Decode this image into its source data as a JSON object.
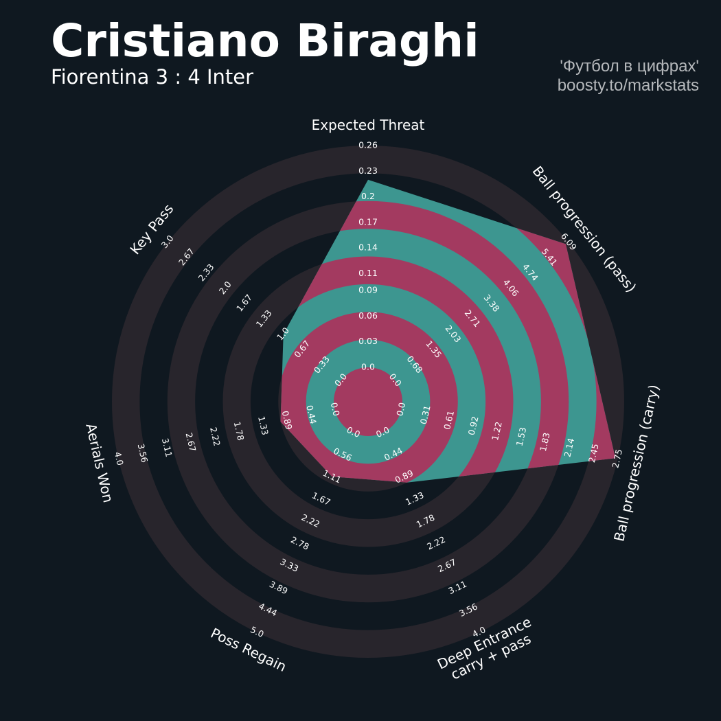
{
  "chart_data": {
    "type": "radar",
    "title": "Cristiano Biraghi",
    "subtitle": "Fiorentina 3 : 4 Inter",
    "credits": [
      "'Футбол в цифрах'",
      "boosty.to/markstats"
    ],
    "categories": [
      [
        "Expected Threat"
      ],
      [
        "Ball progression (pass)"
      ],
      [
        "Ball progression (carry)"
      ],
      [
        "Deep Entrance",
        "carry + pass"
      ],
      [
        "Poss Regain"
      ],
      [
        "Aerials Won"
      ],
      [
        "Key Pass"
      ]
    ],
    "values": [
      0.22,
      6.0,
      2.72,
      1.0,
      1.1,
      1.0,
      1.0
    ],
    "color": "#3d9690",
    "alt_color": "#a33a60",
    "ring_color": "#28252c",
    "axes": [
      {
        "range": [
          0,
          0.26
        ],
        "ticks": [
          {
            "value": 0,
            "label": "0.0"
          },
          {
            "value": 0.03,
            "label": "0.03"
          },
          {
            "value": 0.06,
            "label": "0.06"
          },
          {
            "value": 0.09,
            "label": "0.09"
          },
          {
            "value": 0.11,
            "label": "0.11"
          },
          {
            "value": 0.14,
            "label": "0.14"
          },
          {
            "value": 0.17,
            "label": "0.17"
          },
          {
            "value": 0.2,
            "label": "0.2"
          },
          {
            "value": 0.23,
            "label": "0.23"
          },
          {
            "value": 0.26,
            "label": "0.26"
          }
        ]
      },
      {
        "range": [
          0,
          6.09
        ],
        "ticks": [
          {
            "value": 0,
            "label": "0.0"
          },
          {
            "value": 0.68,
            "label": "0.68"
          },
          {
            "value": 1.35,
            "label": "1.35"
          },
          {
            "value": 2.03,
            "label": "2.03"
          },
          {
            "value": 2.71,
            "label": "2.71"
          },
          {
            "value": 3.38,
            "label": "3.38"
          },
          {
            "value": 4.06,
            "label": "4.06"
          },
          {
            "value": 4.74,
            "label": "4.74"
          },
          {
            "value": 5.41,
            "label": "5.41"
          },
          {
            "value": 6.09,
            "label": "6.09"
          }
        ]
      },
      {
        "range": [
          0,
          2.75
        ],
        "ticks": [
          {
            "value": 0,
            "label": "0.0"
          },
          {
            "value": 0.31,
            "label": "0.31"
          },
          {
            "value": 0.61,
            "label": "0.61"
          },
          {
            "value": 0.92,
            "label": "0.92"
          },
          {
            "value": 1.22,
            "label": "1.22"
          },
          {
            "value": 1.53,
            "label": "1.53"
          },
          {
            "value": 1.83,
            "label": "1.83"
          },
          {
            "value": 2.14,
            "label": "2.14"
          },
          {
            "value": 2.45,
            "label": "2.45"
          },
          {
            "value": 2.75,
            "label": "2.75"
          }
        ]
      },
      {
        "range": [
          0,
          4
        ],
        "ticks": [
          {
            "value": 0,
            "label": "0.0"
          },
          {
            "value": 0.44,
            "label": "0.44"
          },
          {
            "value": 0.89,
            "label": "0.89"
          },
          {
            "value": 1.33,
            "label": "1.33"
          },
          {
            "value": 1.78,
            "label": "1.78"
          },
          {
            "value": 2.22,
            "label": "2.22"
          },
          {
            "value": 2.67,
            "label": "2.67"
          },
          {
            "value": 3.11,
            "label": "3.11"
          },
          {
            "value": 3.56,
            "label": "3.56"
          },
          {
            "value": 4,
            "label": "4.0"
          }
        ]
      },
      {
        "range": [
          0,
          5
        ],
        "ticks": [
          {
            "value": 0,
            "label": "0.0"
          },
          {
            "value": 0.56,
            "label": "0.56"
          },
          {
            "value": 1.11,
            "label": "1.11"
          },
          {
            "value": 1.67,
            "label": "1.67"
          },
          {
            "value": 2.22,
            "label": "2.22"
          },
          {
            "value": 2.78,
            "label": "2.78"
          },
          {
            "value": 3.33,
            "label": "3.33"
          },
          {
            "value": 3.89,
            "label": "3.89"
          },
          {
            "value": 4.44,
            "label": "4.44"
          },
          {
            "value": 5,
            "label": "5.0"
          }
        ]
      },
      {
        "range": [
          0,
          4
        ],
        "ticks": [
          {
            "value": 0,
            "label": "0.0"
          },
          {
            "value": 0.44,
            "label": "0.44"
          },
          {
            "value": 0.89,
            "label": "0.89"
          },
          {
            "value": 1.33,
            "label": "1.33"
          },
          {
            "value": 1.78,
            "label": "1.78"
          },
          {
            "value": 2.22,
            "label": "2.22"
          },
          {
            "value": 2.67,
            "label": "2.67"
          },
          {
            "value": 3.11,
            "label": "3.11"
          },
          {
            "value": 3.56,
            "label": "3.56"
          },
          {
            "value": 4,
            "label": "4.0"
          }
        ]
      },
      {
        "range": [
          0,
          3
        ],
        "ticks": [
          {
            "value": 0,
            "label": "0.0"
          },
          {
            "value": 0.33,
            "label": "0.33"
          },
          {
            "value": 0.67,
            "label": "0.67"
          },
          {
            "value": 1,
            "label": "1.0"
          },
          {
            "value": 1.33,
            "label": "1.33"
          },
          {
            "value": 1.67,
            "label": "1.67"
          },
          {
            "value": 2,
            "label": "2.0"
          },
          {
            "value": 2.33,
            "label": "2.33"
          },
          {
            "value": 2.67,
            "label": "2.67"
          },
          {
            "value": 3,
            "label": "3.0"
          }
        ]
      }
    ]
  }
}
